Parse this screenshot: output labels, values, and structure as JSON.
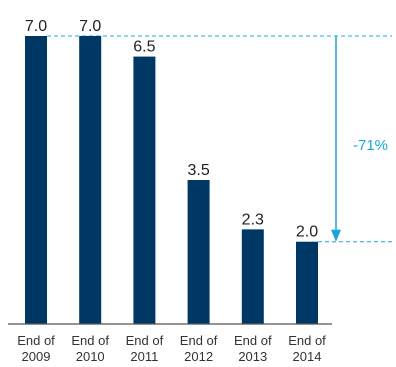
{
  "chart_data": {
    "type": "bar",
    "categories": [
      [
        "End of",
        "2009"
      ],
      [
        "End of",
        "2010"
      ],
      [
        "End of",
        "2011"
      ],
      [
        "End of",
        "2012"
      ],
      [
        "End of",
        "2013"
      ],
      [
        "End of",
        "2014"
      ]
    ],
    "values": [
      7.0,
      7.0,
      6.5,
      3.5,
      2.3,
      2.0
    ],
    "value_labels": [
      "7.0",
      "7.0",
      "6.5",
      "3.5",
      "2.3",
      "2.0"
    ],
    "title": "",
    "xlabel": "",
    "ylabel": "",
    "ylim": [
      0,
      7.0
    ],
    "grid": false,
    "annotation": {
      "text": "-71%",
      "from_value": 7.0,
      "to_value": 2.0
    }
  },
  "colors": {
    "bar": "#003865",
    "annotation": "#1ba6dc",
    "axis": "#555555"
  }
}
